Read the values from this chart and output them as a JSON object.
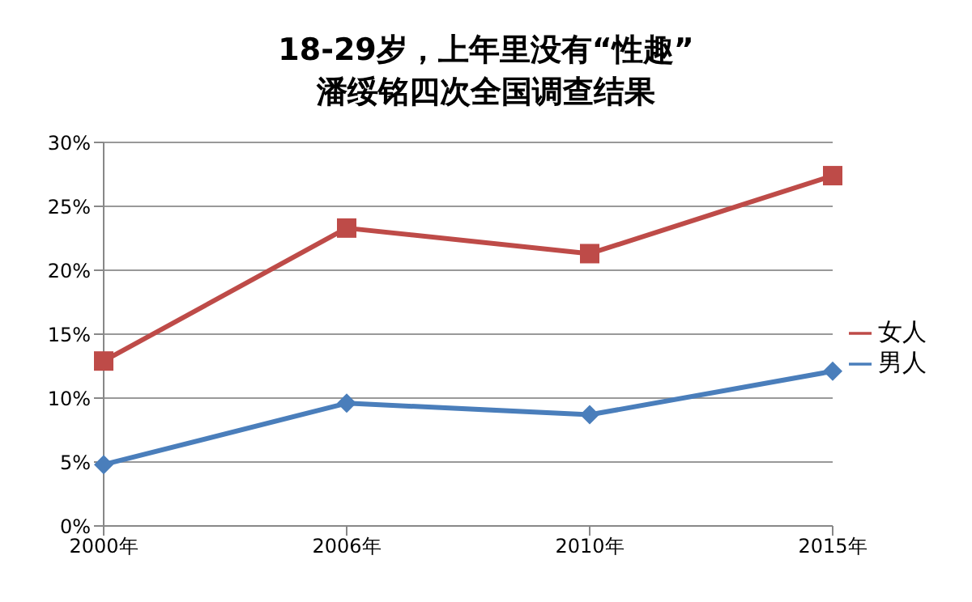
{
  "chart_data": {
    "type": "line",
    "title": "18-29岁，上年里没有“性趣”",
    "subtitle": "潘绥铭四次全国调查结果",
    "categories": [
      "2000年",
      "2006年",
      "2010年",
      "2015年"
    ],
    "series": [
      {
        "name": "男人",
        "color": "#4a7ebb",
        "marker": "diamond",
        "values": [
          4.8,
          9.6,
          8.7,
          12.1
        ]
      },
      {
        "name": "女人",
        "color": "#be4b48",
        "marker": "square",
        "values": [
          12.9,
          23.3,
          21.3,
          27.4
        ]
      }
    ],
    "ylim": [
      0,
      30
    ],
    "yticks": [
      {
        "value": 0,
        "label": "0%"
      },
      {
        "value": 5,
        "label": "5%"
      },
      {
        "value": 10,
        "label": "10%"
      },
      {
        "value": 15,
        "label": "15%"
      },
      {
        "value": 20,
        "label": "20%"
      },
      {
        "value": 25,
        "label": "25%"
      },
      {
        "value": 30,
        "label": "30%"
      }
    ],
    "grid": "y",
    "legend": "right",
    "line_style": "solid"
  }
}
